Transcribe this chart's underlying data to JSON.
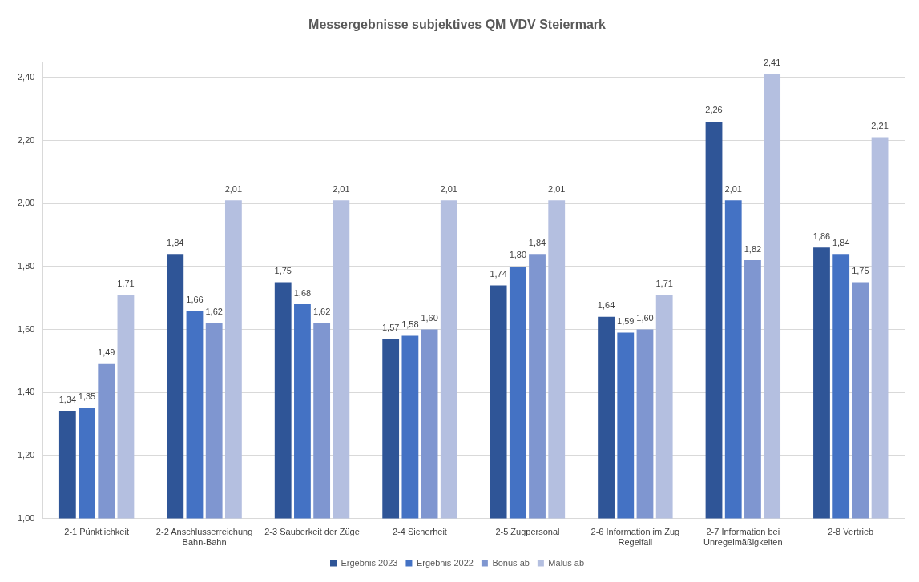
{
  "chart_data": {
    "type": "bar",
    "title": "Messergebnisse subjektives QM VDV Steiermark",
    "categories": [
      "2-1 Pünktlichkeit",
      "2-2 Anschlusserreichung Bahn-Bahn",
      "2-3 Sauberkeit der Züge",
      "2-4 Sicherheit",
      "2-5 Zugpersonal",
      "2-6 Information im Zug Regelfall",
      "2-7 Information bei Unregelmäßigkeiten",
      "2-8 Vertrieb"
    ],
    "series": [
      {
        "name": "Ergebnis 2023",
        "color": "#2f5597",
        "values": [
          1.34,
          1.84,
          1.75,
          1.57,
          1.74,
          1.64,
          2.26,
          1.86
        ],
        "value_labels": [
          "1,34",
          "1,84",
          "1,75",
          "1,57",
          "1,74",
          "1,64",
          "2,26",
          "1,86"
        ]
      },
      {
        "name": "Ergebnis 2022",
        "color": "#4472c4",
        "values": [
          1.35,
          1.66,
          1.68,
          1.58,
          1.8,
          1.59,
          2.01,
          1.84
        ],
        "value_labels": [
          "1,35",
          "1,66",
          "1,68",
          "1,58",
          "1,80",
          "1,59",
          "2,01",
          "1,84"
        ]
      },
      {
        "name": "Bonus ab",
        "color": "#7f96d0",
        "values": [
          1.49,
          1.62,
          1.62,
          1.6,
          1.84,
          1.6,
          1.82,
          1.75
        ],
        "value_labels": [
          "1,49",
          "1,62",
          "1,62",
          "1,60",
          "1,84",
          "1,60",
          "1,82",
          "1,75"
        ]
      },
      {
        "name": "Malus ab",
        "color": "#b4bfe0",
        "values": [
          1.71,
          2.01,
          2.01,
          2.01,
          2.01,
          1.71,
          2.41,
          2.21
        ],
        "value_labels": [
          "1,71",
          "2,01",
          "2,01",
          "2,01",
          "2,01",
          "1,71",
          "2,41",
          "2,21"
        ]
      }
    ],
    "ylim": [
      1,
      2.45
    ],
    "yticks": [
      {
        "value": 1,
        "label": "1,00"
      },
      {
        "value": 1.2,
        "label": "1,20"
      },
      {
        "value": 1.4,
        "label": "1,40"
      },
      {
        "value": 1.6,
        "label": "1,60"
      },
      {
        "value": 1.8,
        "label": "1,80"
      },
      {
        "value": 2,
        "label": "2,00"
      },
      {
        "value": 2.2,
        "label": "2,20"
      },
      {
        "value": 2.4,
        "label": "2,40"
      }
    ],
    "grid": "y",
    "legend": "bottom"
  }
}
